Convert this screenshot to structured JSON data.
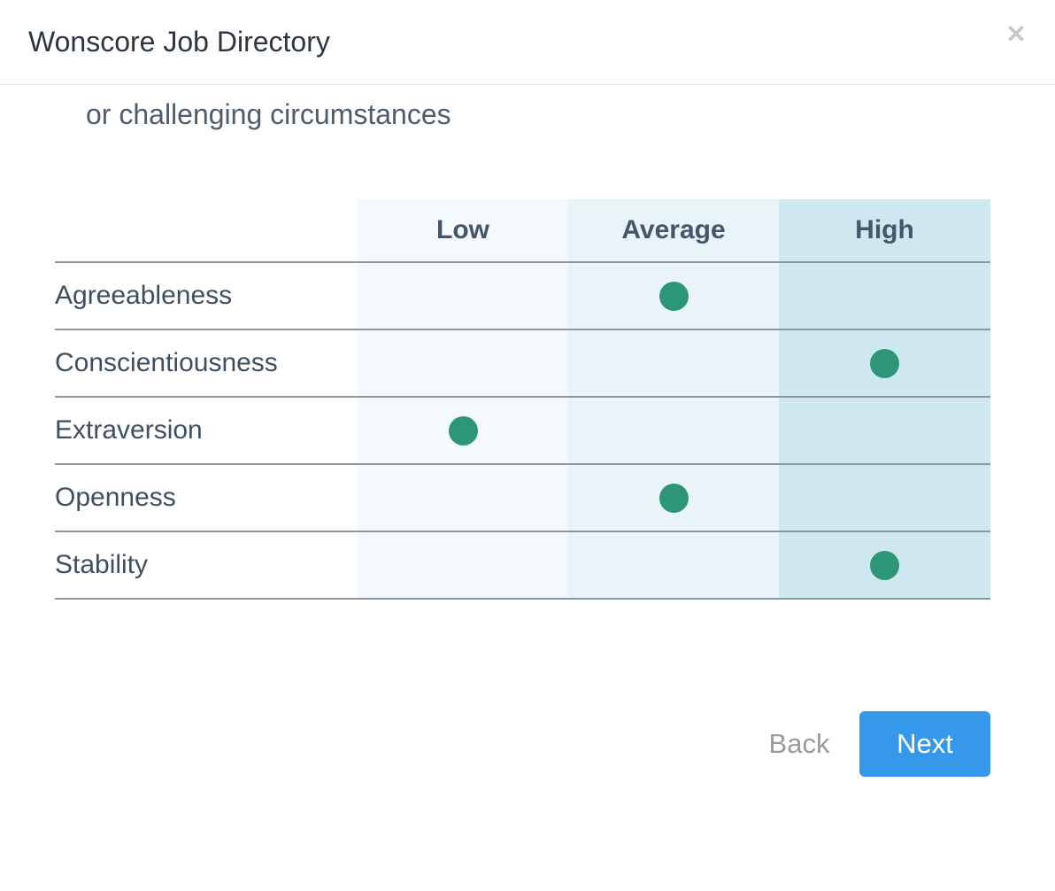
{
  "modal": {
    "title": "Wonscore Job Directory",
    "close_icon_glyph": "✕",
    "close_icon_color": "#c6c6c6"
  },
  "content": {
    "clipped_line": "or challenging circumstances"
  },
  "table": {
    "columns": [
      "Low",
      "Average",
      "High"
    ],
    "column_colors": {
      "Low": "#f3f9fc",
      "Average": "#e9f4f9",
      "High": "#cfe8f0"
    },
    "line_color": "#8e97a1",
    "dot_color": "#2d9679",
    "rows": [
      {
        "label": "Agreeableness",
        "level": "Average"
      },
      {
        "label": "Conscientiousness",
        "level": "High"
      },
      {
        "label": "Extraversion",
        "level": "Low"
      },
      {
        "label": "Openness",
        "level": "Average"
      },
      {
        "label": "Stability",
        "level": "High"
      }
    ]
  },
  "footer": {
    "back_label": "Back",
    "next_label": "Next",
    "next_button_color": "#3598ea"
  }
}
